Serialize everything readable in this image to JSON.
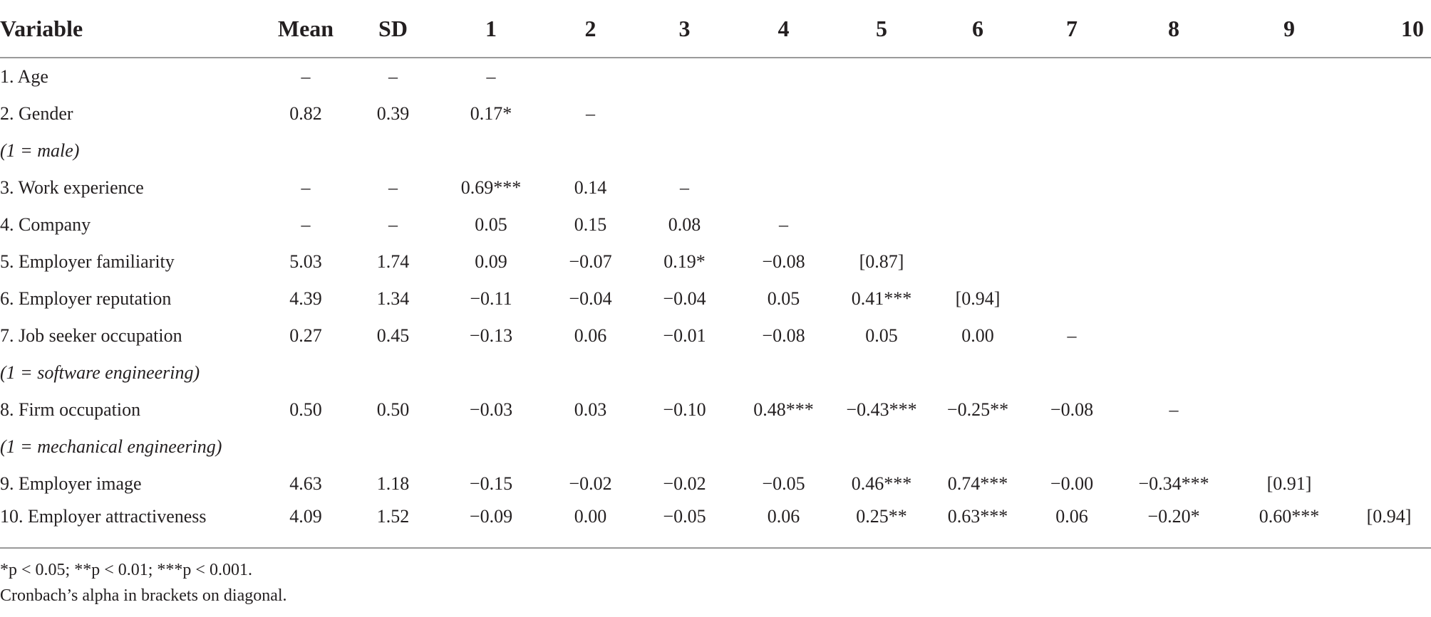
{
  "table": {
    "headers": [
      "Variable",
      "Mean",
      "SD",
      "1",
      "2",
      "3",
      "4",
      "5",
      "6",
      "7",
      "8",
      "9",
      "10"
    ],
    "rows": [
      {
        "cells": [
          "1. Age",
          "–",
          "–",
          "–",
          "",
          "",
          "",
          "",
          "",
          "",
          "",
          "",
          ""
        ]
      },
      {
        "cells": [
          "2. Gender",
          "0.82",
          "0.39",
          "0.17*",
          "–",
          "",
          "",
          "",
          "",
          "",
          "",
          "",
          ""
        ]
      },
      {
        "cells": [
          "(1 = male)",
          "",
          "",
          "",
          "",
          "",
          "",
          "",
          "",
          "",
          "",
          "",
          ""
        ],
        "italic": true
      },
      {
        "cells": [
          "3. Work experience",
          "–",
          "–",
          "0.69***",
          "0.14",
          "–",
          "",
          "",
          "",
          "",
          "",
          "",
          ""
        ]
      },
      {
        "cells": [
          "4. Company",
          "–",
          "–",
          "0.05",
          "0.15",
          "0.08",
          "–",
          "",
          "",
          "",
          "",
          "",
          ""
        ]
      },
      {
        "cells": [
          "5. Employer familiarity",
          "5.03",
          "1.74",
          "0.09",
          "−0.07",
          "0.19*",
          "−0.08",
          "[0.87]",
          "",
          "",
          "",
          "",
          ""
        ]
      },
      {
        "cells": [
          "6. Employer reputation",
          "4.39",
          "1.34",
          "−0.11",
          "−0.04",
          "−0.04",
          "0.05",
          "0.41***",
          "[0.94]",
          "",
          "",
          "",
          ""
        ]
      },
      {
        "cells": [
          "7. Job seeker occupation",
          "0.27",
          "0.45",
          "−0.13",
          "0.06",
          "−0.01",
          "−0.08",
          "0.05",
          "0.00",
          "–",
          "",
          "",
          ""
        ]
      },
      {
        "cells": [
          "(1 = software engineering)",
          "",
          "",
          "",
          "",
          "",
          "",
          "",
          "",
          "",
          "",
          "",
          ""
        ],
        "italic": true
      },
      {
        "cells": [
          "8. Firm occupation",
          "0.50",
          "0.50",
          "−0.03",
          "0.03",
          "−0.10",
          "0.48***",
          "−0.43***",
          "−0.25**",
          "−0.08",
          "–",
          "",
          ""
        ]
      },
      {
        "cells": [
          "(1 = mechanical engineering)",
          "",
          "",
          "",
          "",
          "",
          "",
          "",
          "",
          "",
          "",
          "",
          ""
        ],
        "italic": true
      },
      {
        "cells": [
          "9. Employer image",
          "4.63",
          "1.18",
          "−0.15",
          "−0.02",
          "−0.02",
          "−0.05",
          "0.46***",
          "0.74***",
          "−0.00",
          "−0.34***",
          "[0.91]",
          ""
        ]
      },
      {
        "cells": [
          "10. Employer attractiveness",
          "4.09",
          "1.52",
          "−0.09",
          "0.00",
          "−0.05",
          "0.06",
          "0.25**",
          "0.63***",
          "0.06",
          "−0.20*",
          "0.60***",
          "[0.94]"
        ]
      }
    ]
  },
  "footnote": {
    "line1": "*p < 0.05; **p < 0.01; ***p < 0.001.",
    "line2": "Cronbach’s alpha in brackets on diagonal."
  }
}
